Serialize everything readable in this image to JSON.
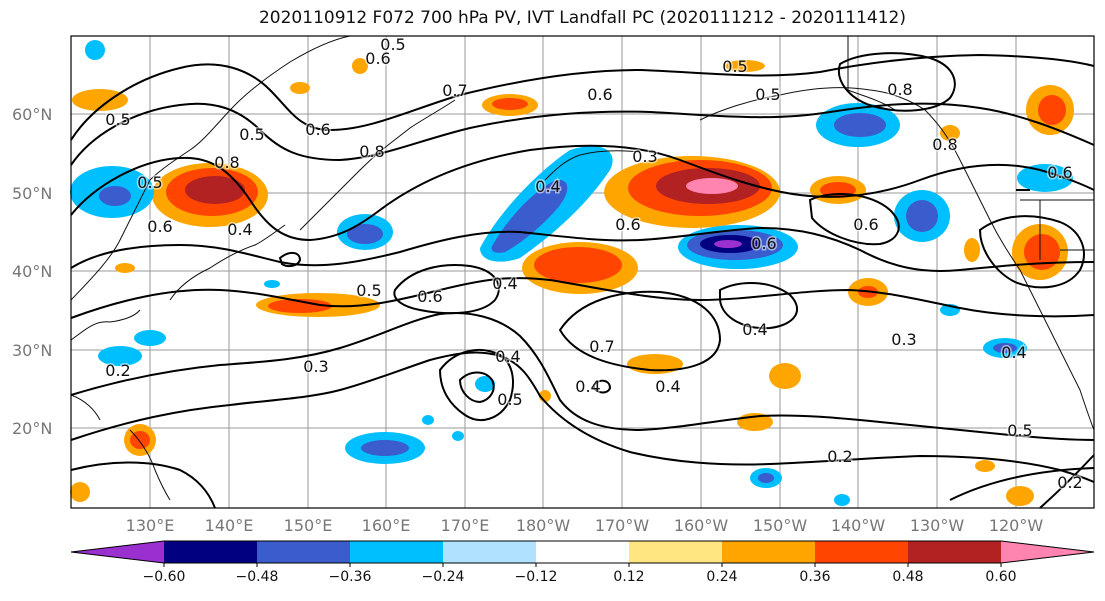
{
  "title": "2020110912 F072 700 hPa PV, IVT Landfall PC (2020111212 - 2020111412)",
  "lat_labels": [
    "60°N",
    "50°N",
    "40°N",
    "30°N",
    "20°N"
  ],
  "lon_labels": [
    "130°E",
    "140°E",
    "150°E",
    "160°E",
    "170°E",
    "180°W",
    "170°W",
    "160°W",
    "150°W",
    "140°W",
    "130°W",
    "120°W"
  ],
  "colorbar": {
    "ticks": [
      "−0.60",
      "−0.48",
      "−0.36",
      "−0.24",
      "−0.12",
      "0.12",
      "0.24",
      "0.36",
      "0.48",
      "0.60"
    ],
    "colors": [
      "#9b30d0",
      "#000080",
      "#3a5ccc",
      "#00bfff",
      "#b0e2ff",
      "#ffffff",
      "#ffe680",
      "#ffa500",
      "#ff4500",
      "#b22222",
      "#ff85b0"
    ]
  },
  "contour_labels": [
    "0.5",
    "0.6",
    "0.7",
    "0.5",
    "0.8",
    "0.5",
    "0.6",
    "0.8",
    "0.3",
    "0.4",
    "0.6",
    "0.5",
    "0.6",
    "0.5",
    "0.8",
    "0.4",
    "0.4",
    "0.5",
    "0.6",
    "0.7",
    "0.4",
    "0.4",
    "0.4",
    "0.3",
    "0.5",
    "0.4",
    "0.3",
    "0.2",
    "0.6",
    "0.4",
    "0.6",
    "0.5",
    "0.2",
    "0.2",
    "0.6",
    "0.5",
    "0.6",
    "0.8"
  ]
}
